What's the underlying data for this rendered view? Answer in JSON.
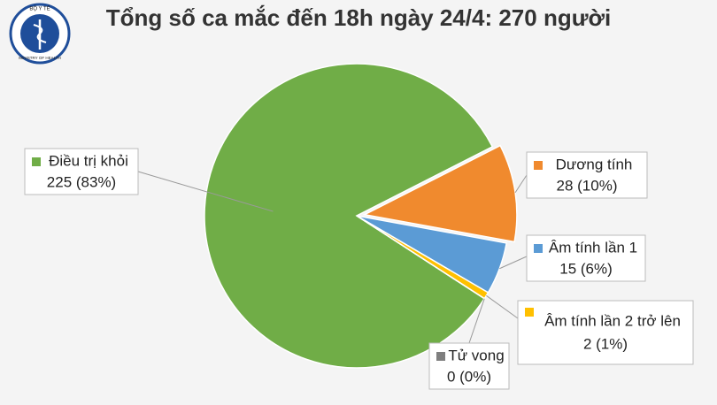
{
  "logo": {
    "top": "BỘ Y TẾ",
    "bottom": "MINISTRY OF HEALTH"
  },
  "chart_data": {
    "type": "pie",
    "title": "Tổng số ca mắc đến 18h ngày 24/4: 270 người",
    "categories": [
      "Điều trị khỏi",
      "Dương tính",
      "Âm tính lần 1",
      "Âm tính lần 2 trở lên",
      "Tử vong"
    ],
    "values": [
      225,
      28,
      15,
      2,
      0
    ],
    "value_labels": [
      "225 (83%)",
      "28 (10%)",
      "15 (6%)",
      "2 (1%)",
      "0 (0%)"
    ],
    "colors": [
      "#70ad47",
      "#f08a2e",
      "#5b9bd5",
      "#ffc000",
      "#7f7f7f"
    ]
  }
}
